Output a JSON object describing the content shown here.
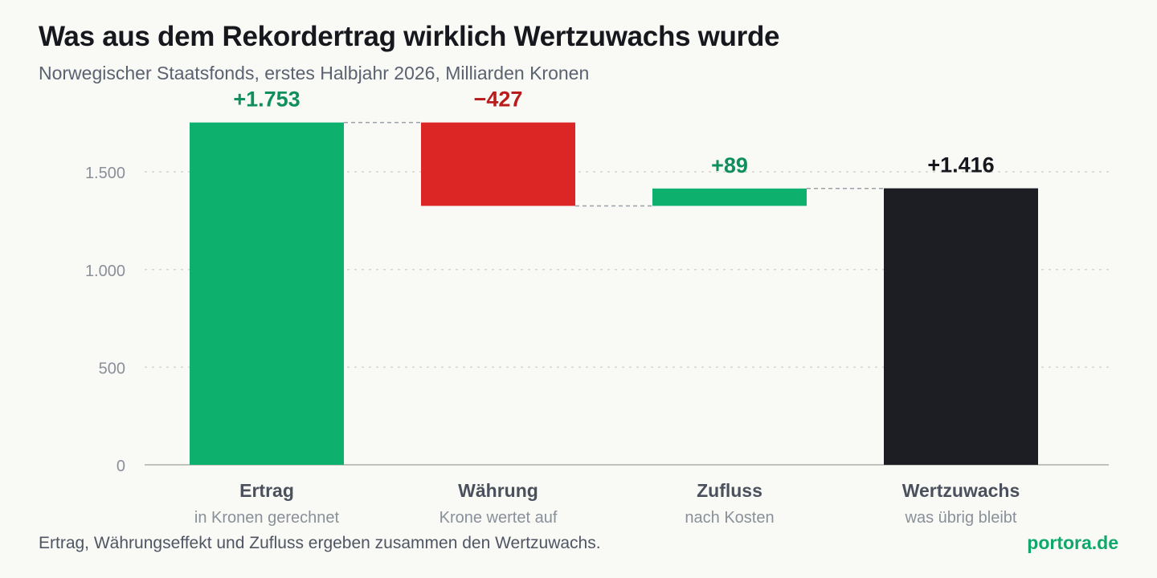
{
  "header": {
    "title": "Was aus dem Rekordertrag wirklich Wertzuwachs wurde",
    "subtitle": "Norwegischer Staatsfonds, erstes Halbjahr 2026, Milliarden Kronen"
  },
  "footer": {
    "note": "Ertrag, Währungseffekt und Zufluss ergeben zusammen den Wertzuwachs.",
    "brand": "portora.de"
  },
  "colors": {
    "positive": "#0eb06e",
    "negative": "#dc2626",
    "total": "#1c1e24",
    "positive_label": "#0f8f5c",
    "negative_label": "#b91c1c",
    "total_label": "#16181d",
    "grid": "#d4d6d2",
    "axis": "#bfc2bd",
    "tick": "#8a9099",
    "connector": "#9aa0a8"
  },
  "chart_data": {
    "type": "waterfall",
    "ylim": [
      0,
      1850
    ],
    "yticks": [
      0,
      500,
      1000,
      1500
    ],
    "ytick_labels": [
      "0",
      "500",
      "1.000",
      "1.500"
    ],
    "grid": true,
    "steps": [
      {
        "category": "Ertrag",
        "sublabel": "in Kronen gerechnet",
        "value": 1753,
        "kind": "increase",
        "label": "+1.753"
      },
      {
        "category": "Währung",
        "sublabel": "Krone wertet auf",
        "value": -427,
        "kind": "decrease",
        "label": "−427"
      },
      {
        "category": "Zufluss",
        "sublabel": "nach Kosten",
        "value": 89,
        "kind": "increase",
        "label": "+89"
      },
      {
        "category": "Wertzuwachs",
        "sublabel": "was übrig bleibt",
        "value": 1416,
        "kind": "total",
        "label": "+1.416"
      }
    ]
  }
}
